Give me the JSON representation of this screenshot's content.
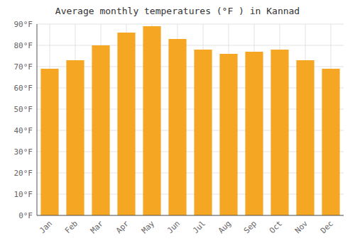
{
  "chart_data": {
    "type": "bar",
    "title": "Average monthly temperatures (°F ) in Kannad",
    "categories": [
      "Jan",
      "Feb",
      "Mar",
      "Apr",
      "May",
      "Jun",
      "Jul",
      "Aug",
      "Sep",
      "Oct",
      "Nov",
      "Dec"
    ],
    "values": [
      69,
      73,
      80,
      86,
      89,
      83,
      78,
      76,
      77,
      78,
      73,
      69
    ],
    "color": "#F5A623",
    "ylim": [
      0,
      90
    ],
    "yticks": [
      {
        "value": 0,
        "label": "0°F"
      },
      {
        "value": 10,
        "label": "10°F"
      },
      {
        "value": 20,
        "label": "20°F"
      },
      {
        "value": 30,
        "label": "30°F"
      },
      {
        "value": 40,
        "label": "40°F"
      },
      {
        "value": 50,
        "label": "50°F"
      },
      {
        "value": 60,
        "label": "60°F"
      },
      {
        "value": 70,
        "label": "70°F"
      },
      {
        "value": 80,
        "label": "80°F"
      },
      {
        "value": 90,
        "label": "90°F"
      }
    ],
    "grid": true
  }
}
